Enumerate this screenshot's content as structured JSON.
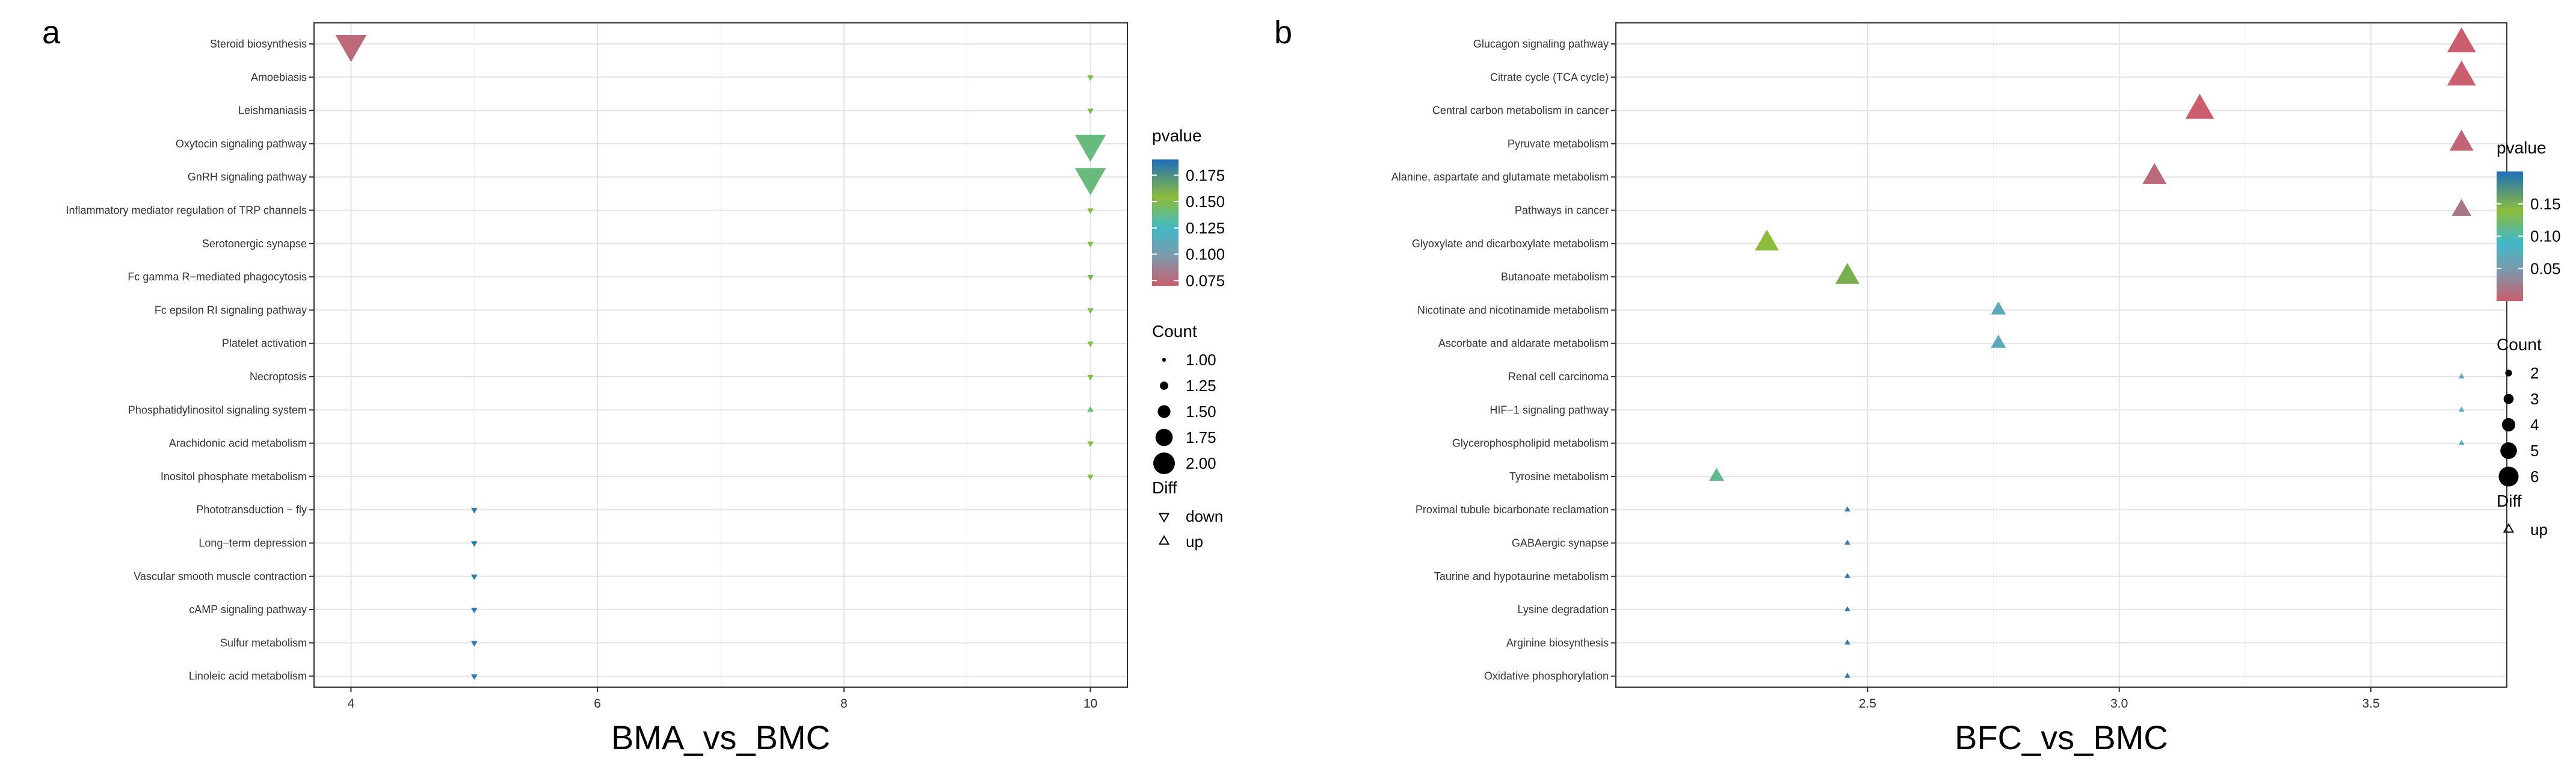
{
  "panel_labels": [
    "a",
    "b"
  ],
  "chart_data": [
    {
      "type": "scatter",
      "panel": "a",
      "xlabel": "BMA_vs_BMC",
      "ylabel": "",
      "xlim": [
        3.7,
        10.3
      ],
      "xticks": [
        4,
        6,
        8,
        10
      ],
      "x_tick_labels": [
        "4",
        "6",
        "8",
        "10"
      ],
      "grid": true,
      "legend_position": "right",
      "categories": [
        "Steroid biosynthesis",
        "Amoebiasis",
        "Leishmaniasis",
        "Oxytocin signaling pathway",
        "GnRH signaling pathway",
        "Inflammatory mediator regulation of TRP channels",
        "Serotonergic synapse",
        "Fc gamma R−mediated phagocytosis",
        "Fc epsilon RI signaling pathway",
        "Platelet activation",
        "Necroptosis",
        "Phosphatidylinositol signaling system",
        "Arachidonic acid metabolism",
        "Inositol phosphate metabolism",
        "Phototransduction − fly",
        "Long−term depression",
        "Vascular smooth muscle contraction",
        "cAMP signaling pathway",
        "Sulfur metabolism",
        "Linoleic acid metabolism"
      ],
      "x": [
        4,
        10,
        10,
        10,
        10,
        10,
        10,
        10,
        10,
        10,
        10,
        10,
        10,
        10,
        5,
        5,
        5,
        5,
        5,
        5
      ],
      "count": [
        2,
        1,
        1,
        2,
        2,
        1,
        1,
        1,
        1,
        1,
        1,
        1,
        1,
        1,
        1,
        1,
        1,
        1,
        1,
        1
      ],
      "pvalue": [
        0.075,
        0.15,
        0.15,
        0.14,
        0.14,
        0.15,
        0.15,
        0.15,
        0.15,
        0.15,
        0.15,
        0.14,
        0.15,
        0.15,
        0.185,
        0.185,
        0.185,
        0.185,
        0.185,
        0.185
      ],
      "diff": [
        "down",
        "down",
        "down",
        "down",
        "down",
        "down",
        "down",
        "down",
        "down",
        "down",
        "down",
        "up",
        "down",
        "down",
        "down",
        "down",
        "down",
        "down",
        "down",
        "down"
      ],
      "pvalue_range": [
        0.07,
        0.19
      ],
      "count_range": [
        1,
        2
      ],
      "legend": {
        "pvalue_title": "pvalue",
        "pvalue_breaks": [
          0.175,
          0.15,
          0.125,
          0.1,
          0.075
        ],
        "pvalue_labels": [
          "0.175",
          "0.150",
          "0.125",
          "0.100",
          "0.075"
        ],
        "count_title": "Count",
        "count_breaks": [
          1,
          1.25,
          1.5,
          1.75,
          2
        ],
        "count_labels": [
          "1.00",
          "1.25",
          "1.50",
          "1.75",
          "2.00"
        ],
        "diff_title": "Diff",
        "diff_items": [
          "down",
          "up"
        ]
      }
    },
    {
      "type": "scatter",
      "panel": "b",
      "xlabel": "BFC_vs_BMC",
      "ylabel": "",
      "xlim": [
        2.0,
        3.77
      ],
      "xticks": [
        2.5,
        3.0,
        3.5
      ],
      "x_tick_labels": [
        "2.5",
        "3.0",
        "3.5"
      ],
      "grid": true,
      "legend_position": "right",
      "categories": [
        "Glucagon signaling pathway",
        "Citrate cycle (TCA cycle)",
        "Central carbon metabolism in cancer",
        "Pyruvate metabolism",
        "Alanine, aspartate and glutamate metabolism",
        "Pathways in cancer",
        "Glyoxylate and dicarboxylate metabolism",
        "Butanoate metabolism",
        "Nicotinate and nicotinamide metabolism",
        "Ascorbate and aldarate metabolism",
        "Renal cell carcinoma",
        "HIF−1 signaling pathway",
        "Glycerophospholipid metabolism",
        "Tyrosine metabolism",
        "Proximal tubule bicarbonate reclamation",
        "GABAergic synapse",
        "Taurine and hypotaurine metabolism",
        "Lysine degradation",
        "Arginine biosynthesis",
        "Oxidative phosphorylation"
      ],
      "x": [
        3.68,
        3.68,
        3.16,
        3.68,
        3.07,
        3.68,
        2.3,
        2.46,
        2.76,
        2.76,
        3.68,
        3.68,
        3.68,
        2.2,
        2.46,
        2.46,
        2.46,
        2.46,
        2.46,
        2.46
      ],
      "count": [
        6,
        6,
        6,
        5,
        5,
        4,
        5,
        5,
        3,
        3,
        1,
        1,
        1,
        3,
        1,
        1,
        1,
        1,
        1,
        1
      ],
      "pvalue": [
        0.0,
        0.0,
        0.0,
        0.005,
        0.01,
        0.02,
        0.14,
        0.15,
        0.07,
        0.07,
        0.07,
        0.07,
        0.07,
        0.11,
        0.19,
        0.19,
        0.19,
        0.19,
        0.19,
        0.19
      ],
      "diff": [
        "up",
        "up",
        "up",
        "up",
        "up",
        "up",
        "up",
        "up",
        "up",
        "up",
        "up",
        "up",
        "up",
        "up",
        "up",
        "up",
        "up",
        "up",
        "up",
        "up"
      ],
      "pvalue_range": [
        0.0,
        0.2
      ],
      "count_range": [
        1,
        6
      ],
      "legend": {
        "pvalue_title": "pvalue",
        "pvalue_breaks": [
          0.15,
          0.1,
          0.05
        ],
        "pvalue_labels": [
          "0.15",
          "0.10",
          "0.05"
        ],
        "count_title": "Count",
        "count_breaks": [
          2,
          3,
          4,
          5,
          6
        ],
        "count_labels": [
          "2",
          "3",
          "4",
          "5",
          "6"
        ],
        "diff_title": "Diff",
        "diff_items": [
          "up"
        ]
      }
    }
  ]
}
